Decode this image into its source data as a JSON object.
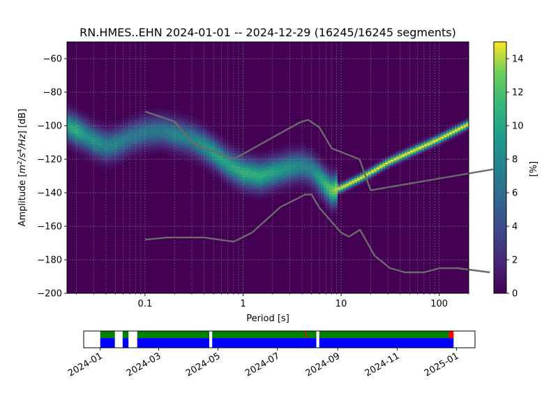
{
  "chart_data": [
    {
      "type": "heatmap",
      "title": "RN.HMES..EHN   2024-01-01 -- 2024-12-29  (16245/16245 segments)",
      "xlabel": "Period [s]",
      "ylabel": "Amplitude [m²/s⁴/Hz] [dB]",
      "x_scale": "log",
      "xlim": [
        0.016,
        200
      ],
      "ylim": [
        -200,
        -50
      ],
      "x_ticks": [
        0.1,
        1,
        10,
        100
      ],
      "x_tick_labels": [
        "0.1",
        "1",
        "10",
        "100"
      ],
      "y_ticks": [
        -200,
        -180,
        -160,
        -140,
        -120,
        -100,
        -80,
        -60
      ],
      "y_tick_labels": [
        "−200",
        "−180",
        "−160",
        "−140",
        "−120",
        "−100",
        "−80",
        "−60"
      ],
      "grid": true,
      "background_color": "#440154",
      "colormap": "viridis",
      "colorbar": {
        "label": "[%]",
        "range": [
          0,
          15
        ],
        "ticks": [
          0,
          2,
          4,
          6,
          8,
          10,
          12,
          14
        ],
        "tick_labels": [
          "0",
          "2",
          "4",
          "6",
          "8",
          "10",
          "12",
          "14"
        ]
      },
      "mode_curve": [
        {
          "period": 0.016,
          "db": -100,
          "percent": 10
        },
        {
          "period": 0.02,
          "db": -103,
          "percent": 11
        },
        {
          "period": 0.025,
          "db": -106,
          "percent": 9
        },
        {
          "period": 0.03,
          "db": -109,
          "percent": 9
        },
        {
          "period": 0.04,
          "db": -112,
          "percent": 8
        },
        {
          "period": 0.05,
          "db": -111,
          "percent": 8
        },
        {
          "period": 0.07,
          "db": -107,
          "percent": 7
        },
        {
          "period": 0.1,
          "db": -104,
          "percent": 7
        },
        {
          "period": 0.15,
          "db": -103,
          "percent": 7
        },
        {
          "period": 0.2,
          "db": -105,
          "percent": 8
        },
        {
          "period": 0.3,
          "db": -108,
          "percent": 8
        },
        {
          "period": 0.4,
          "db": -112,
          "percent": 9
        },
        {
          "period": 0.5,
          "db": -116,
          "percent": 10
        },
        {
          "period": 0.7,
          "db": -123,
          "percent": 10
        },
        {
          "period": 1,
          "db": -128,
          "percent": 11
        },
        {
          "period": 1.5,
          "db": -130,
          "percent": 11
        },
        {
          "period": 2,
          "db": -128,
          "percent": 10
        },
        {
          "period": 3,
          "db": -125,
          "percent": 9
        },
        {
          "period": 4,
          "db": -124,
          "percent": 8
        },
        {
          "period": 5,
          "db": -126,
          "percent": 8
        },
        {
          "period": 6,
          "db": -131,
          "percent": 10
        },
        {
          "period": 8,
          "db": -139,
          "percent": 13
        },
        {
          "period": 10,
          "db": -137,
          "percent": 15
        },
        {
          "period": 15,
          "db": -132,
          "percent": 15
        },
        {
          "period": 20,
          "db": -128,
          "percent": 15
        },
        {
          "period": 30,
          "db": -122,
          "percent": 15
        },
        {
          "period": 50,
          "db": -116,
          "percent": 15
        },
        {
          "period": 100,
          "db": -108,
          "percent": 15
        },
        {
          "period": 200,
          "db": -99,
          "percent": 15
        }
      ],
      "noise_models": [
        {
          "name": "upper",
          "points": [
            [
              0.1,
              -91.5
            ],
            [
              0.2,
              -97.5
            ],
            [
              0.3,
              -110
            ],
            [
              0.8,
              -120
            ],
            [
              3.8,
              -98
            ],
            [
              4.6,
              -96.5
            ],
            [
              6,
              -101
            ],
            [
              8,
              -113.5
            ],
            [
              15.4,
              -120
            ],
            [
              20,
              -138.5
            ],
            [
              354,
              -126
            ]
          ]
        },
        {
          "name": "lower",
          "points": [
            [
              0.1,
              -168
            ],
            [
              0.17,
              -166.7
            ],
            [
              0.4,
              -166.7
            ],
            [
              0.8,
              -169.2
            ],
            [
              1.24,
              -163.7
            ],
            [
              2.4,
              -148.6
            ],
            [
              4.3,
              -141.1
            ],
            [
              5,
              -141.1
            ],
            [
              6,
              -149
            ],
            [
              10,
              -163.8
            ],
            [
              12,
              -166.2
            ],
            [
              15.6,
              -162.1
            ],
            [
              21.9,
              -177.5
            ],
            [
              31.6,
              -185
            ],
            [
              45,
              -187.5
            ],
            [
              70,
              -187.5
            ],
            [
              101,
              -185
            ],
            [
              154,
              -185
            ],
            [
              328,
              -187.5
            ]
          ]
        }
      ]
    },
    {
      "type": "timeline",
      "x_tick_labels": [
        "2024-01",
        "2024-03",
        "2024-05",
        "2024-07",
        "2024-09",
        "2024-11",
        "2025-01"
      ],
      "x_ticks": [
        "2024-01-01",
        "2024-03-01",
        "2024-05-01",
        "2024-07-01",
        "2024-09-01",
        "2024-11-01",
        "2025-01-01"
      ],
      "xlim": [
        "2023-12-15",
        "2025-01-20"
      ],
      "top_color": "#008000",
      "bottom_color": "#0000ff",
      "gap_color": "#ff0000",
      "top_segments": [
        [
          "2024-01-01",
          "2024-01-16"
        ],
        [
          "2024-01-24",
          "2024-01-30"
        ],
        [
          "2024-02-08",
          "2024-04-22"
        ],
        [
          "2024-04-25",
          "2024-08-10"
        ],
        [
          "2024-08-13",
          "2024-12-26"
        ]
      ],
      "bottom_segments": [
        [
          "2024-01-01",
          "2024-01-16"
        ],
        [
          "2024-01-24",
          "2024-01-30"
        ],
        [
          "2024-02-08",
          "2024-04-22"
        ],
        [
          "2024-04-25",
          "2024-08-10"
        ],
        [
          "2024-08-13",
          "2024-12-29"
        ]
      ],
      "gap_marks": [
        [
          "2024-07-30",
          "2024-07-31"
        ],
        [
          "2024-12-24",
          "2024-12-29"
        ]
      ]
    }
  ]
}
